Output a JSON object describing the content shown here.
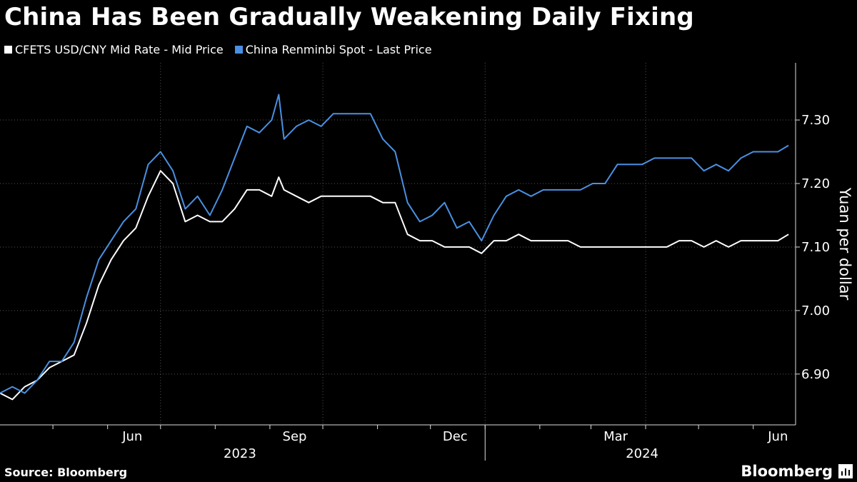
{
  "title": "China Has Been Gradually Weakening Daily Fixing",
  "source": "Source: Bloomberg",
  "brand": "Bloomberg",
  "chart_data": {
    "type": "line",
    "title": "China Has Been Gradually Weakening Daily Fixing",
    "ylabel": "Yuan per dollar",
    "ylim": [
      6.82,
      7.39
    ],
    "yticks": [
      6.9,
      7.0,
      7.1,
      7.2,
      7.3
    ],
    "ytick_labels": [
      "6.90",
      "7.00",
      "7.10",
      "7.20",
      "7.30"
    ],
    "xlim": [
      "2023-04-01",
      "2024-06-25"
    ],
    "month_labels": [
      {
        "date": "2023-06-15",
        "label": "Jun"
      },
      {
        "date": "2023-09-15",
        "label": "Sep"
      },
      {
        "date": "2023-12-15",
        "label": "Dec"
      },
      {
        "date": "2024-03-15",
        "label": "Mar"
      },
      {
        "date": "2024-06-15",
        "label": "Jun"
      }
    ],
    "month_ticks": [
      "2023-05-01",
      "2023-06-01",
      "2023-07-01",
      "2023-08-01",
      "2023-09-01",
      "2023-10-01",
      "2023-11-01",
      "2023-12-01",
      "2024-01-01",
      "2024-02-01",
      "2024-03-01",
      "2024-04-01",
      "2024-05-01",
      "2024-06-01"
    ],
    "year_labels": [
      {
        "date": "2023-08-15",
        "label": "2023"
      },
      {
        "date": "2024-03-30",
        "label": "2024"
      }
    ],
    "year_divider": "2024-01-01",
    "grid": true,
    "legend_position": "top-left",
    "series": [
      {
        "name": "CFETS USD/CNY Mid Rate - Mid Price",
        "color": "#ffffff",
        "points": [
          [
            "2023-04-01",
            6.87
          ],
          [
            "2023-04-08",
            6.86
          ],
          [
            "2023-04-15",
            6.88
          ],
          [
            "2023-04-22",
            6.89
          ],
          [
            "2023-04-29",
            6.91
          ],
          [
            "2023-05-06",
            6.92
          ],
          [
            "2023-05-13",
            6.93
          ],
          [
            "2023-05-20",
            6.98
          ],
          [
            "2023-05-27",
            7.04
          ],
          [
            "2023-06-03",
            7.08
          ],
          [
            "2023-06-10",
            7.11
          ],
          [
            "2023-06-17",
            7.13
          ],
          [
            "2023-06-24",
            7.18
          ],
          [
            "2023-07-01",
            7.22
          ],
          [
            "2023-07-08",
            7.2
          ],
          [
            "2023-07-15",
            7.14
          ],
          [
            "2023-07-22",
            7.15
          ],
          [
            "2023-07-29",
            7.14
          ],
          [
            "2023-08-05",
            7.14
          ],
          [
            "2023-08-12",
            7.16
          ],
          [
            "2023-08-19",
            7.19
          ],
          [
            "2023-08-26",
            7.19
          ],
          [
            "2023-09-02",
            7.18
          ],
          [
            "2023-09-06",
            7.21
          ],
          [
            "2023-09-09",
            7.19
          ],
          [
            "2023-09-16",
            7.18
          ],
          [
            "2023-09-23",
            7.17
          ],
          [
            "2023-09-30",
            7.18
          ],
          [
            "2023-10-07",
            7.18
          ],
          [
            "2023-10-14",
            7.18
          ],
          [
            "2023-10-21",
            7.18
          ],
          [
            "2023-10-28",
            7.18
          ],
          [
            "2023-11-04",
            7.17
          ],
          [
            "2023-11-11",
            7.17
          ],
          [
            "2023-11-18",
            7.12
          ],
          [
            "2023-11-25",
            7.11
          ],
          [
            "2023-12-02",
            7.11
          ],
          [
            "2023-12-09",
            7.1
          ],
          [
            "2023-12-16",
            7.1
          ],
          [
            "2023-12-23",
            7.1
          ],
          [
            "2023-12-30",
            7.09
          ],
          [
            "2024-01-06",
            7.11
          ],
          [
            "2024-01-13",
            7.11
          ],
          [
            "2024-01-20",
            7.12
          ],
          [
            "2024-01-27",
            7.11
          ],
          [
            "2024-02-03",
            7.11
          ],
          [
            "2024-02-10",
            7.11
          ],
          [
            "2024-02-17",
            7.11
          ],
          [
            "2024-02-24",
            7.1
          ],
          [
            "2024-03-02",
            7.1
          ],
          [
            "2024-03-09",
            7.1
          ],
          [
            "2024-03-16",
            7.1
          ],
          [
            "2024-03-23",
            7.1
          ],
          [
            "2024-03-30",
            7.1
          ],
          [
            "2024-04-06",
            7.1
          ],
          [
            "2024-04-13",
            7.1
          ],
          [
            "2024-04-20",
            7.11
          ],
          [
            "2024-04-27",
            7.11
          ],
          [
            "2024-05-04",
            7.1
          ],
          [
            "2024-05-11",
            7.11
          ],
          [
            "2024-05-18",
            7.1
          ],
          [
            "2024-05-25",
            7.11
          ],
          [
            "2024-06-01",
            7.11
          ],
          [
            "2024-06-08",
            7.11
          ],
          [
            "2024-06-15",
            7.11
          ],
          [
            "2024-06-21",
            7.12
          ]
        ]
      },
      {
        "name": "China Renminbi Spot - Last Price",
        "color": "#4a90e2",
        "points": [
          [
            "2023-04-01",
            6.87
          ],
          [
            "2023-04-08",
            6.88
          ],
          [
            "2023-04-15",
            6.87
          ],
          [
            "2023-04-22",
            6.89
          ],
          [
            "2023-04-29",
            6.92
          ],
          [
            "2023-05-06",
            6.92
          ],
          [
            "2023-05-13",
            6.95
          ],
          [
            "2023-05-20",
            7.02
          ],
          [
            "2023-05-27",
            7.08
          ],
          [
            "2023-06-03",
            7.11
          ],
          [
            "2023-06-10",
            7.14
          ],
          [
            "2023-06-17",
            7.16
          ],
          [
            "2023-06-24",
            7.23
          ],
          [
            "2023-07-01",
            7.25
          ],
          [
            "2023-07-08",
            7.22
          ],
          [
            "2023-07-15",
            7.16
          ],
          [
            "2023-07-22",
            7.18
          ],
          [
            "2023-07-29",
            7.15
          ],
          [
            "2023-08-05",
            7.19
          ],
          [
            "2023-08-12",
            7.24
          ],
          [
            "2023-08-19",
            7.29
          ],
          [
            "2023-08-26",
            7.28
          ],
          [
            "2023-09-02",
            7.3
          ],
          [
            "2023-09-06",
            7.34
          ],
          [
            "2023-09-09",
            7.27
          ],
          [
            "2023-09-16",
            7.29
          ],
          [
            "2023-09-23",
            7.3
          ],
          [
            "2023-09-30",
            7.29
          ],
          [
            "2023-10-07",
            7.31
          ],
          [
            "2023-10-14",
            7.31
          ],
          [
            "2023-10-21",
            7.31
          ],
          [
            "2023-10-28",
            7.31
          ],
          [
            "2023-11-04",
            7.27
          ],
          [
            "2023-11-11",
            7.25
          ],
          [
            "2023-11-18",
            7.17
          ],
          [
            "2023-11-25",
            7.14
          ],
          [
            "2023-12-02",
            7.15
          ],
          [
            "2023-12-09",
            7.17
          ],
          [
            "2023-12-16",
            7.13
          ],
          [
            "2023-12-23",
            7.14
          ],
          [
            "2023-12-30",
            7.11
          ],
          [
            "2024-01-06",
            7.15
          ],
          [
            "2024-01-13",
            7.18
          ],
          [
            "2024-01-20",
            7.19
          ],
          [
            "2024-01-27",
            7.18
          ],
          [
            "2024-02-03",
            7.19
          ],
          [
            "2024-02-10",
            7.19
          ],
          [
            "2024-02-17",
            7.19
          ],
          [
            "2024-02-24",
            7.19
          ],
          [
            "2024-03-02",
            7.2
          ],
          [
            "2024-03-09",
            7.2
          ],
          [
            "2024-03-16",
            7.23
          ],
          [
            "2024-03-23",
            7.23
          ],
          [
            "2024-03-30",
            7.23
          ],
          [
            "2024-04-06",
            7.24
          ],
          [
            "2024-04-13",
            7.24
          ],
          [
            "2024-04-20",
            7.24
          ],
          [
            "2024-04-27",
            7.24
          ],
          [
            "2024-05-04",
            7.22
          ],
          [
            "2024-05-11",
            7.23
          ],
          [
            "2024-05-18",
            7.22
          ],
          [
            "2024-05-25",
            7.24
          ],
          [
            "2024-06-01",
            7.25
          ],
          [
            "2024-06-08",
            7.25
          ],
          [
            "2024-06-15",
            7.25
          ],
          [
            "2024-06-21",
            7.26
          ]
        ]
      }
    ]
  }
}
